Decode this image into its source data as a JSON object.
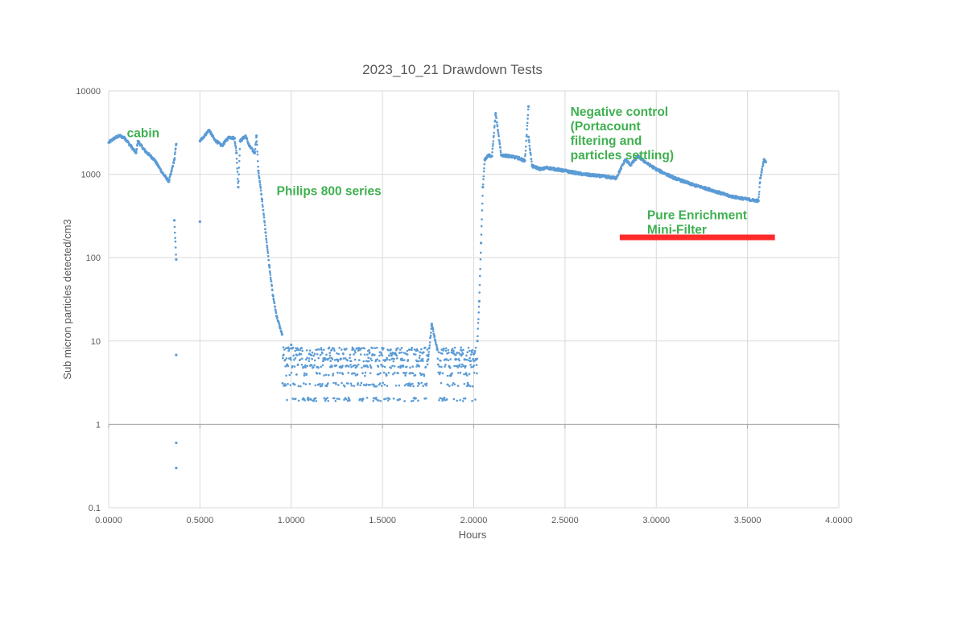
{
  "chart_data": {
    "type": "scatter",
    "title": "2023_10_21 Drawdown Tests",
    "xlabel": "Hours",
    "ylabel": "Sub micron particles detected/cm3",
    "xlim": [
      0,
      4
    ],
    "ylim": [
      0.1,
      10000
    ],
    "yscale": "log",
    "grid": true,
    "marker_color": "#5b9bd5",
    "x_ticks": [
      "0.0000",
      "0.5000",
      "1.0000",
      "1.5000",
      "2.0000",
      "2.5000",
      "3.0000",
      "3.5000",
      "4.0000"
    ],
    "y_ticks": [
      "0.1",
      "1",
      "10",
      "100",
      "1000",
      "10000"
    ],
    "series": [
      {
        "points": [
          [
            0.0,
            2400
          ],
          [
            0.03,
            2700
          ],
          [
            0.06,
            2900
          ],
          [
            0.09,
            2700
          ],
          [
            0.12,
            2200
          ],
          [
            0.15,
            1800
          ],
          [
            0.16,
            2500
          ],
          [
            0.2,
            1900
          ],
          [
            0.25,
            1500
          ],
          [
            0.3,
            1000
          ],
          [
            0.33,
            820
          ],
          [
            0.34,
            1000
          ],
          [
            0.36,
            1500
          ],
          [
            0.37,
            2300
          ],
          [
            0.36,
            280
          ],
          [
            0.37,
            95
          ],
          [
            0.37,
            6.8
          ],
          [
            0.37,
            0.6
          ],
          [
            0.37,
            0.3
          ],
          [
            0.5,
            270
          ],
          [
            0.5,
            2500
          ],
          [
            0.53,
            3000
          ],
          [
            0.55,
            3400
          ],
          [
            0.58,
            2600
          ],
          [
            0.62,
            2200
          ],
          [
            0.64,
            2500
          ],
          [
            0.66,
            2800
          ],
          [
            0.69,
            2700
          ],
          [
            0.7,
            1800
          ],
          [
            0.71,
            700
          ],
          [
            0.72,
            2500
          ],
          [
            0.75,
            2900
          ],
          [
            0.77,
            2200
          ],
          [
            0.8,
            1800
          ],
          [
            0.81,
            2900
          ],
          [
            0.82,
            1100
          ],
          [
            0.84,
            500
          ],
          [
            0.86,
            200
          ],
          [
            0.88,
            80
          ],
          [
            0.9,
            35
          ],
          [
            0.92,
            20
          ],
          [
            0.95,
            12
          ],
          [
            1.0,
            9
          ],
          [
            1.1,
            7
          ],
          [
            1.2,
            6
          ],
          [
            1.3,
            5
          ],
          [
            1.4,
            5
          ],
          [
            1.5,
            5
          ],
          [
            1.6,
            5
          ],
          [
            1.7,
            5
          ],
          [
            1.75,
            6
          ],
          [
            1.77,
            16
          ],
          [
            1.8,
            8
          ],
          [
            1.85,
            6
          ],
          [
            1.9,
            6
          ],
          [
            1.95,
            6
          ],
          [
            2.0,
            7
          ],
          [
            2.02,
            10
          ],
          [
            2.03,
            30
          ],
          [
            2.04,
            150
          ],
          [
            2.05,
            700
          ],
          [
            2.06,
            1500
          ],
          [
            2.08,
            1700
          ],
          [
            2.1,
            1650
          ],
          [
            2.12,
            5400
          ],
          [
            2.15,
            1700
          ],
          [
            2.2,
            1650
          ],
          [
            2.25,
            1550
          ],
          [
            2.28,
            1450
          ],
          [
            2.3,
            6500
          ],
          [
            2.3,
            2800
          ],
          [
            2.32,
            1250
          ],
          [
            2.37,
            1150
          ],
          [
            2.4,
            1200
          ],
          [
            2.5,
            1100
          ],
          [
            2.6,
            1000
          ],
          [
            2.7,
            950
          ],
          [
            2.78,
            900
          ],
          [
            2.8,
            1100
          ],
          [
            2.83,
            1500
          ],
          [
            2.86,
            1300
          ],
          [
            2.9,
            1650
          ],
          [
            2.95,
            1350
          ],
          [
            3.0,
            1150
          ],
          [
            3.1,
            900
          ],
          [
            3.2,
            750
          ],
          [
            3.3,
            650
          ],
          [
            3.4,
            550
          ],
          [
            3.5,
            500
          ],
          [
            3.56,
            480
          ],
          [
            3.57,
            900
          ],
          [
            3.59,
            1500
          ],
          [
            3.6,
            1400
          ]
        ]
      }
    ],
    "annotations": [
      {
        "text": "cabin",
        "x": 0.1,
        "y": 2800,
        "color": "#3fb050"
      },
      {
        "text": "Philips 800 series",
        "x": 0.92,
        "y": 560,
        "color": "#3fb050"
      },
      {
        "lines": [
          "Negative control",
          "(Portacount",
          "filtering and",
          "particles settling)"
        ],
        "x": 2.53,
        "y": 5000,
        "color": "#3fb050"
      },
      {
        "lines": [
          "Pure Enrichment",
          "Mini-Filter"
        ],
        "x": 2.95,
        "y": 290,
        "color": "#3fb050"
      }
    ],
    "highlight_bar": {
      "x_start": 2.8,
      "x_end": 3.65,
      "y": 175,
      "color": "#ff2a2a"
    }
  }
}
